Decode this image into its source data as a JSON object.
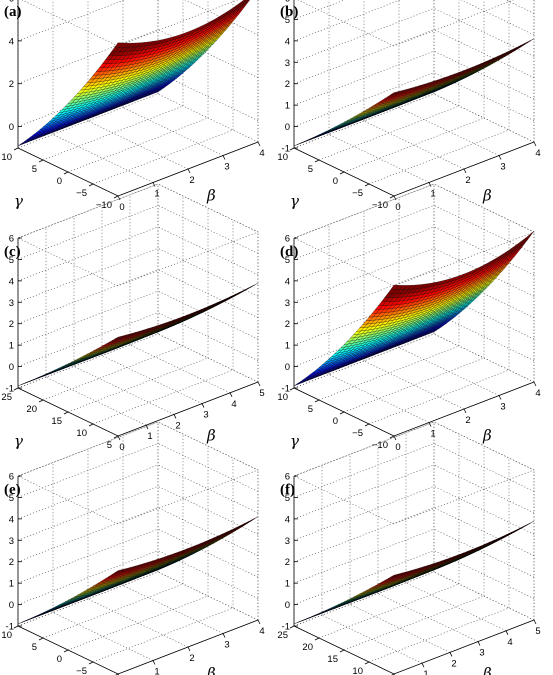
{
  "chart_data": [
    {
      "panel_label": "(a)",
      "type": "surface",
      "xlabel": "β",
      "ylabel": "γ",
      "zlabel": "",
      "x_range": [
        0,
        4
      ],
      "y_range": [
        -10,
        10
      ],
      "z_range": [
        -1,
        6
      ],
      "x_ticks": [
        "0",
        "1",
        "2",
        "3",
        "4"
      ],
      "y_ticks": [
        "-10",
        "-5",
        "0",
        "5",
        "10"
      ],
      "z_ticks": [
        "0",
        "2",
        "4",
        "6"
      ],
      "surface": {
        "zmin": -0.9,
        "zmax": 5.4,
        "high_side": "low-γ",
        "curvature": 0.55,
        "beta_bow": 0.12
      }
    },
    {
      "panel_label": "(b)",
      "type": "surface",
      "xlabel": "β",
      "ylabel": "γ",
      "zlabel": "",
      "x_range": [
        0,
        4
      ],
      "y_range": [
        -10,
        10
      ],
      "z_range": [
        -1,
        6
      ],
      "x_ticks": [
        "0",
        "1",
        "2",
        "3",
        "4"
      ],
      "y_ticks": [
        "-10",
        "-5",
        "0",
        "5",
        "10"
      ],
      "z_ticks": [
        "-1",
        "0",
        "1",
        "2",
        "3",
        "4",
        "5",
        "6"
      ],
      "surface": {
        "zmin": -0.9,
        "zmax": 3.6,
        "high_side": "low-γ",
        "curvature": 0.25,
        "beta_bow": 0.05
      }
    },
    {
      "panel_label": "(c)",
      "type": "surface",
      "xlabel": "β",
      "ylabel": "γ",
      "zlabel": "",
      "x_range": [
        0,
        5
      ],
      "y_range": [
        5,
        25
      ],
      "z_range": [
        -1,
        6
      ],
      "x_ticks": [
        "0",
        "1",
        "2",
        "3",
        "4",
        "5"
      ],
      "y_ticks": [
        "5",
        "10",
        "15",
        "20",
        "25"
      ],
      "z_ticks": [
        "-1",
        "0",
        "1",
        "2",
        "3",
        "4",
        "5",
        "6"
      ],
      "surface": {
        "zmin": -0.9,
        "zmax": 3.4,
        "high_side": "low-γ",
        "curvature": 0.2,
        "beta_bow": 0.05
      }
    },
    {
      "panel_label": "(d)",
      "type": "surface",
      "xlabel": "β",
      "ylabel": "γ",
      "zlabel": "",
      "x_range": [
        0,
        4
      ],
      "y_range": [
        -10,
        10
      ],
      "z_range": [
        -1,
        6
      ],
      "x_ticks": [
        "0",
        "1",
        "2",
        "3",
        "4"
      ],
      "y_ticks": [
        "-10",
        "-5",
        "0",
        "5",
        "10"
      ],
      "z_ticks": [
        "-1",
        "0",
        "1",
        "2",
        "3",
        "4",
        "5",
        "6"
      ],
      "surface": {
        "zmin": -0.9,
        "zmax": 5.3,
        "high_side": "low-γ",
        "curvature": 0.55,
        "beta_bow": 0.12
      }
    },
    {
      "panel_label": "(e)",
      "type": "surface",
      "xlabel": "β",
      "ylabel": "γ",
      "zlabel": "",
      "x_range": [
        0,
        4
      ],
      "y_range": [
        -10,
        10
      ],
      "z_range": [
        -1,
        6
      ],
      "x_ticks": [
        "0",
        "1",
        "2",
        "3",
        "4"
      ],
      "y_ticks": [
        "-10",
        "-5",
        "0",
        "5",
        "10"
      ],
      "z_ticks": [
        "-1",
        "0",
        "1",
        "2",
        "3",
        "4",
        "5",
        "6"
      ],
      "surface": {
        "zmin": -0.9,
        "zmax": 3.6,
        "high_side": "low-γ",
        "curvature": 0.25,
        "beta_bow": 0.05
      }
    },
    {
      "panel_label": "(f)",
      "type": "surface",
      "xlabel": "β",
      "ylabel": "γ",
      "zlabel": "",
      "x_range": [
        0,
        5
      ],
      "y_range": [
        5,
        25
      ],
      "z_range": [
        -1,
        6
      ],
      "x_ticks": [
        "0",
        "1",
        "2",
        "3",
        "4",
        "5"
      ],
      "y_ticks": [
        "5",
        "10",
        "15",
        "20",
        "25"
      ],
      "z_ticks": [
        "-1",
        "0",
        "1",
        "2",
        "3",
        "4",
        "5",
        "6"
      ],
      "surface": {
        "zmin": -0.9,
        "zmax": 3.4,
        "high_side": "low-γ",
        "curvature": 0.2,
        "beta_bow": 0.05
      }
    }
  ]
}
